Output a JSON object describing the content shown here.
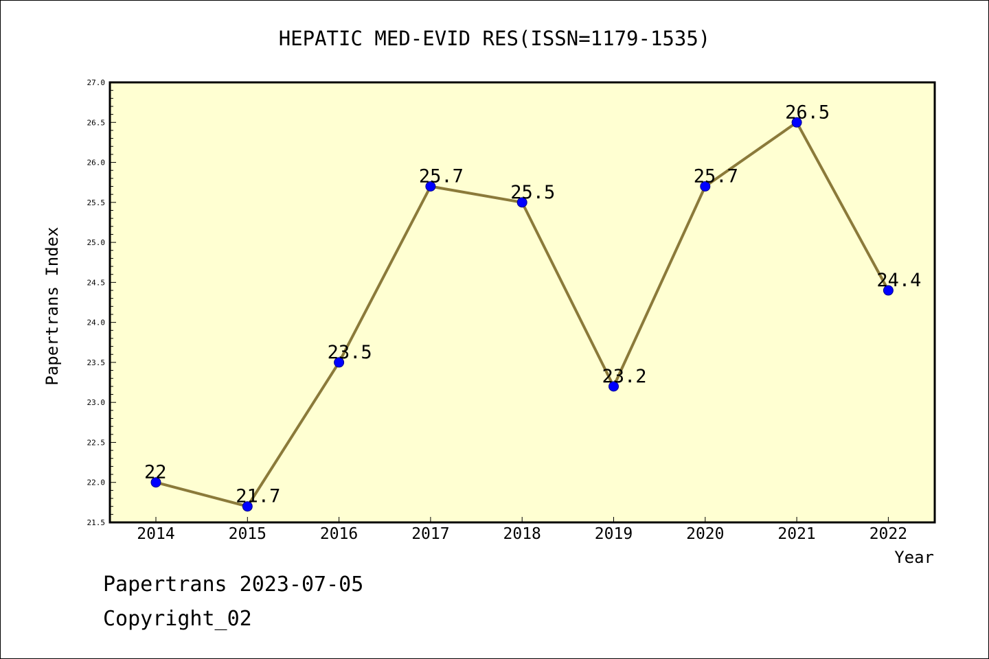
{
  "chart_data": {
    "type": "line",
    "title": "HEPATIC MED-EVID RES(ISSN=1179-1535)",
    "xlabel": "Year",
    "ylabel": "Papertrans Index",
    "categories": [
      "2014",
      "2015",
      "2016",
      "2017",
      "2018",
      "2019",
      "2020",
      "2021",
      "2022"
    ],
    "series": [
      {
        "values": [
          22,
          21.7,
          23.5,
          25.7,
          25.5,
          23.2,
          25.7,
          26.5,
          24.4
        ]
      }
    ],
    "data_labels": [
      "22",
      "21.7",
      "23.5",
      "25.7",
      "25.5",
      "23.2",
      "25.7",
      "26.5",
      "24.4"
    ],
    "ylim": [
      21.5,
      27.0
    ],
    "yticks": [
      "21.5",
      "22.0",
      "22.5",
      "23.0",
      "23.5",
      "24.0",
      "24.5",
      "25.0",
      "25.5",
      "26.0",
      "26.5",
      "27.0"
    ],
    "grid": false,
    "colors": {
      "plot_background": "#ffffd2",
      "line": "#8b7a3a",
      "marker": "#0000ff",
      "marker_edge": "#00008b"
    }
  },
  "footer": {
    "line1": "Papertrans 2023-07-05",
    "line2": "Copyright_02"
  }
}
